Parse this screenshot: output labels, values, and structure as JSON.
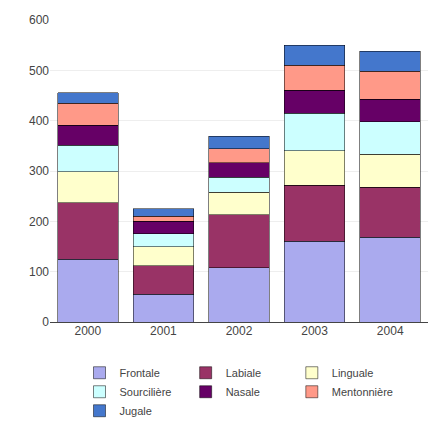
{
  "chart_data": {
    "type": "bar",
    "stacked": true,
    "categories": [
      "2000",
      "2001",
      "2002",
      "2003",
      "2004"
    ],
    "series": [
      {
        "name": "Frontale",
        "color": "#aaaaee",
        "values": [
          125,
          55,
          108,
          160,
          168
        ]
      },
      {
        "name": "Labiale",
        "color": "#993366",
        "values": [
          112,
          57,
          105,
          112,
          100
        ]
      },
      {
        "name": "Linguale",
        "color": "#ffffcc",
        "values": [
          62,
          38,
          45,
          68,
          65
        ]
      },
      {
        "name": "Sourcilière",
        "color": "#ccffff",
        "values": [
          52,
          25,
          30,
          75,
          65
        ]
      },
      {
        "name": "Nasale",
        "color": "#660066",
        "values": [
          40,
          25,
          28,
          45,
          45
        ]
      },
      {
        "name": "Mentonnière",
        "color": "#ff9988",
        "values": [
          44,
          10,
          28,
          50,
          55
        ]
      },
      {
        "name": "Jugale",
        "color": "#4477cc",
        "values": [
          20,
          15,
          25,
          40,
          40
        ]
      }
    ],
    "ylim": [
      0,
      600
    ],
    "yticks": [
      0,
      100,
      200,
      300,
      400,
      500,
      600
    ],
    "grid": true,
    "legend": "bottom"
  }
}
